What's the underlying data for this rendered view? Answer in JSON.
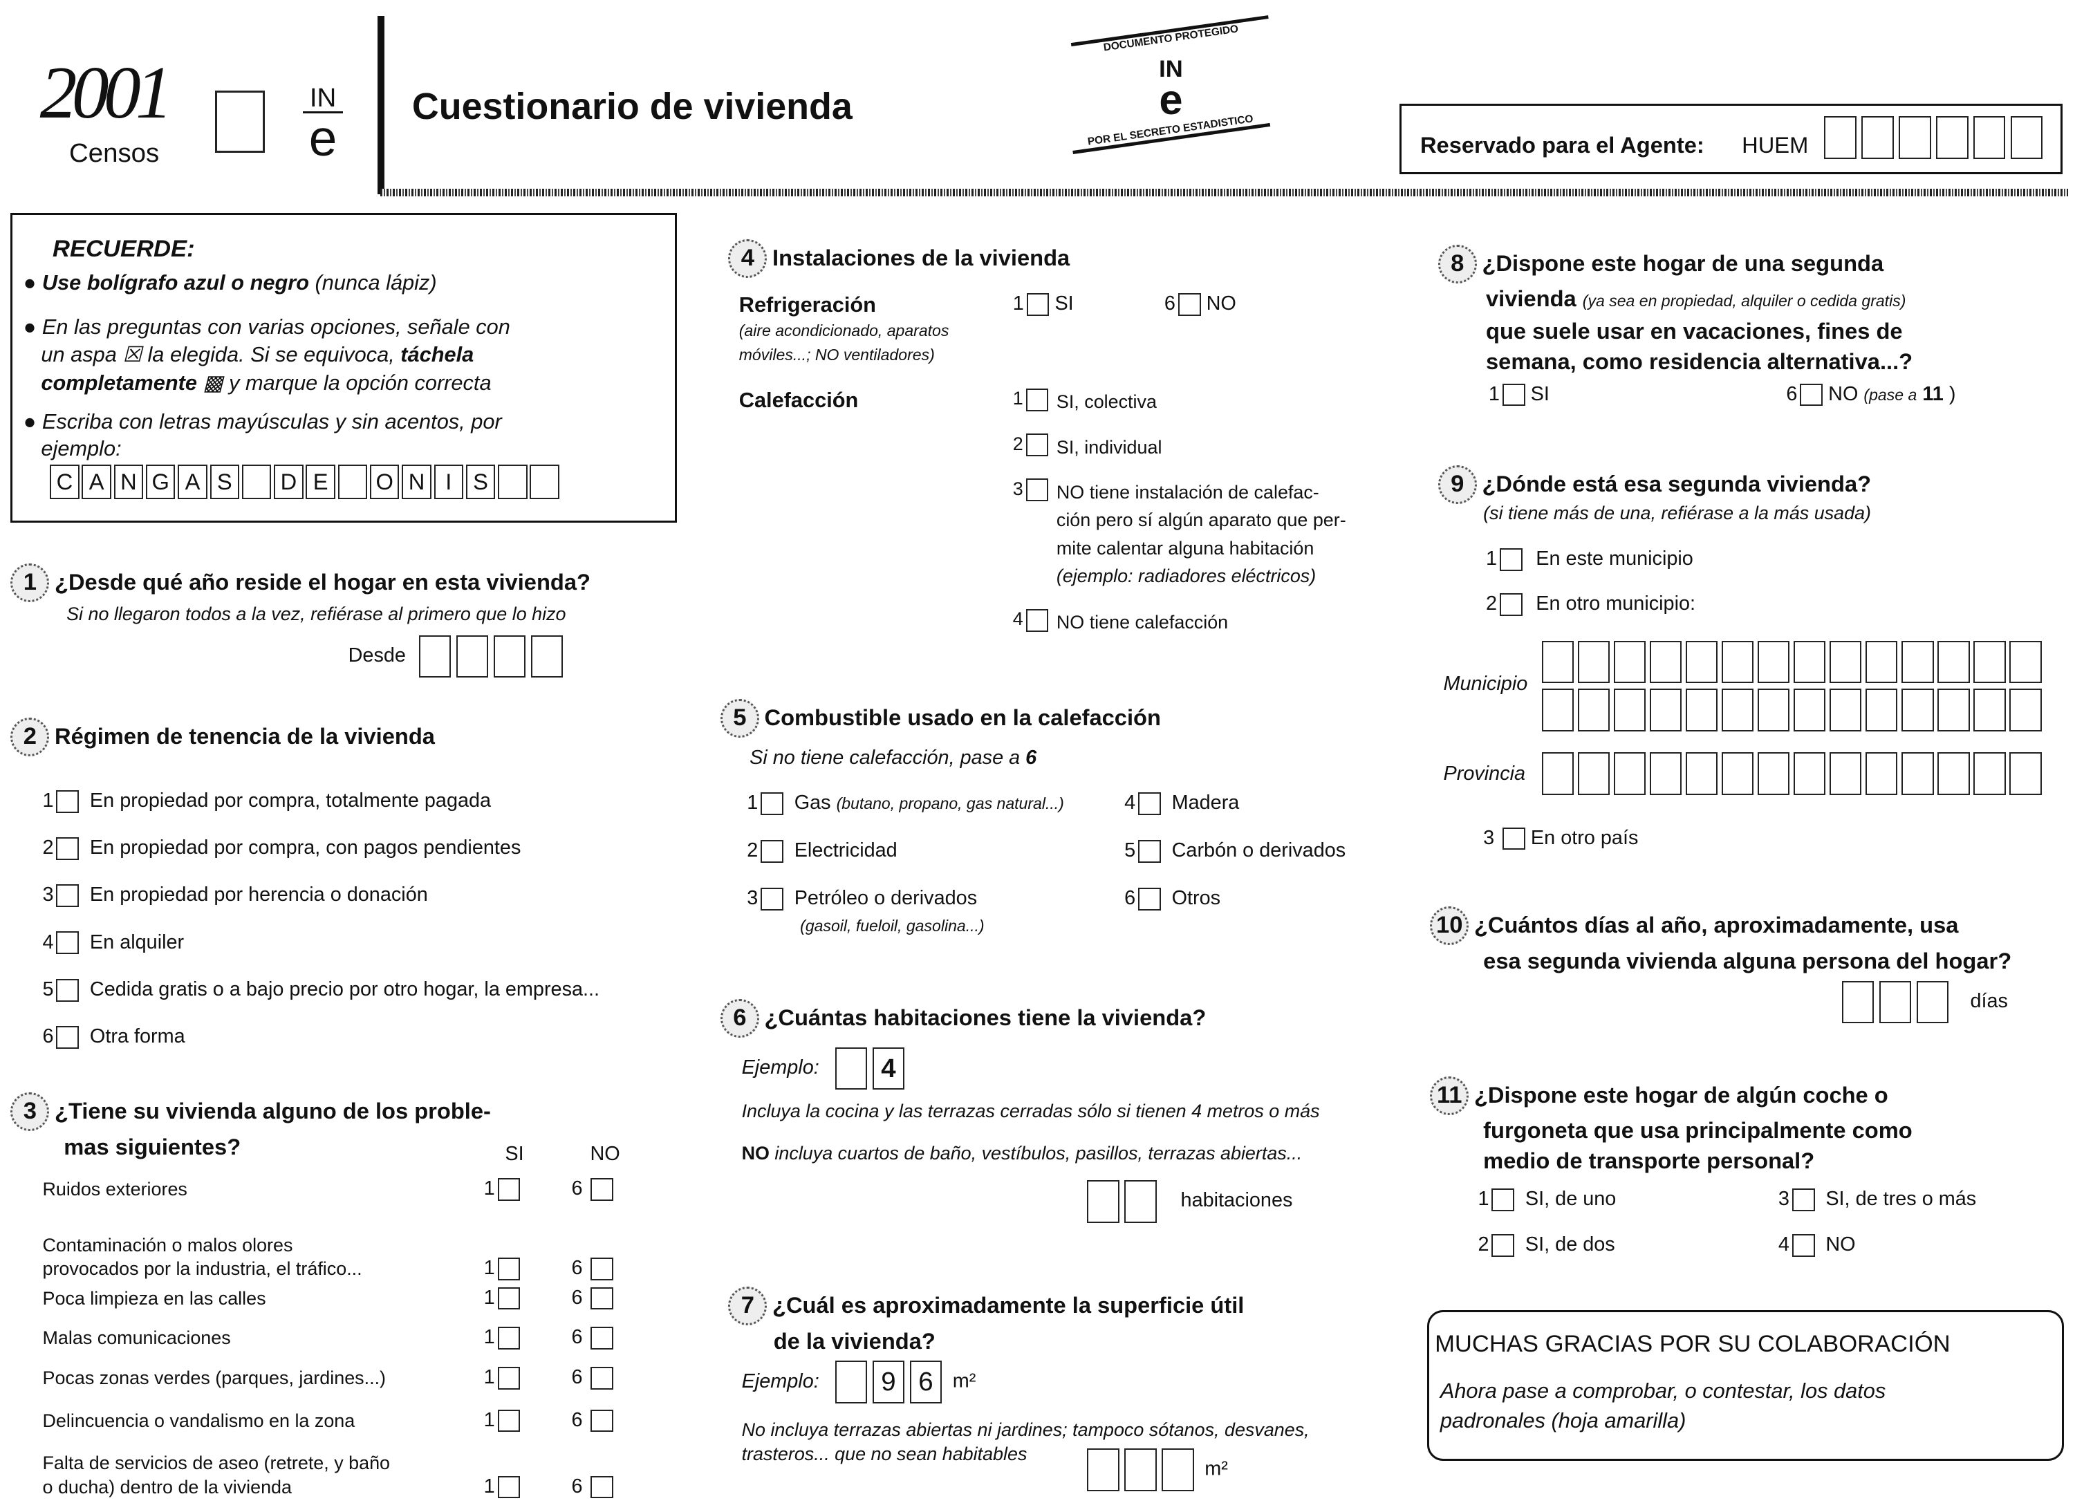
{
  "header": {
    "logo_year": "2001",
    "logo_word": "Censos",
    "ine_top": "IN",
    "ine_bottom": "e",
    "title": "Cuestionario de vivienda",
    "stamp_top": "DOCUMENTO PROTEGIDO",
    "stamp_bottom": "POR EL SECRETO ESTADISTICO",
    "agent_label": "Reservado para el Agente:",
    "agent_code": "HUEM"
  },
  "recuerde": {
    "title": "RECUERDE:",
    "l1a": "Use bolígrafo azul o negro",
    "l1b": " (nunca lápiz)",
    "l2a": "En las preguntas con varias opciones, señale con",
    "l2b": "un aspa ☒ la elegida. Si se equivoca, ",
    "l2c": "táchela",
    "l2d": "completamente",
    "l2e": " ▩ y marque la opción correcta",
    "l3a": "Escriba con letras mayúsculas y sin acentos, por",
    "l3b": "ejemplo:",
    "example": [
      "C",
      "A",
      "N",
      "G",
      "A",
      "S",
      "",
      "D",
      "E",
      "",
      "O",
      "N",
      "I",
      "S",
      "",
      ""
    ]
  },
  "q1": {
    "num": "1",
    "title": "¿Desde qué año reside el hogar en esta vivienda?",
    "note": "Si no llegaron todos a la vez, refiérase al primero que lo hizo",
    "desde": "Desde"
  },
  "q2": {
    "num": "2",
    "title": "Régimen de tenencia de la vivienda",
    "options": [
      {
        "code": "1",
        "label": "En propiedad por compra, totalmente pagada"
      },
      {
        "code": "2",
        "label": "En propiedad por compra, con pagos pendientes"
      },
      {
        "code": "3",
        "label": "En propiedad por herencia o donación"
      },
      {
        "code": "4",
        "label": "En alquiler"
      },
      {
        "code": "5",
        "label": "Cedida gratis o a bajo precio por otro hogar, la empresa..."
      },
      {
        "code": "6",
        "label": "Otra forma"
      }
    ]
  },
  "q3": {
    "num": "3",
    "title1": "¿Tiene su vivienda alguno de los proble-",
    "title2": "mas siguientes?",
    "si": "SI",
    "no": "NO",
    "si_code": "1",
    "no_code": "6",
    "items": [
      {
        "label": "Ruidos exteriores",
        "label2": ""
      },
      {
        "label": "Contaminación o malos olores",
        "label2": "provocados por la industria, el tráfico..."
      },
      {
        "label": "Poca limpieza en las calles",
        "label2": ""
      },
      {
        "label": "Malas comunicaciones",
        "label2": ""
      },
      {
        "label": "Pocas zonas verdes (parques, jardines...)",
        "label2": ""
      },
      {
        "label": "Delincuencia o vandalismo en la zona",
        "label2": ""
      },
      {
        "label": "Falta de servicios de aseo (retrete, y baño",
        "label2": "o ducha) dentro de la vivienda"
      }
    ]
  },
  "q4": {
    "num": "4",
    "title": "Instalaciones de la vivienda",
    "refri": "Refrigeración",
    "refri_note1": "(aire acondicionado, aparatos",
    "refri_note2": "móviles...; NO ventiladores)",
    "refri_si": "1",
    "refri_si_l": "SI",
    "refri_no": "6",
    "refri_no_l": "NO",
    "calef": "Calefacción",
    "calef_opts": [
      {
        "code": "1",
        "label": "SI, colectiva"
      },
      {
        "code": "2",
        "label": "SI, individual"
      },
      {
        "code": "3",
        "label": "NO tiene instalación de calefac-",
        "l2": "ción pero sí algún aparato que per-",
        "l3": "mite calentar alguna habitación",
        "l4": "(ejemplo: radiadores eléctricos)"
      },
      {
        "code": "4",
        "label": "NO tiene calefacción"
      }
    ]
  },
  "q5": {
    "num": "5",
    "title": "Combustible usado en la calefacción",
    "note": "Si no tiene calefacción, pase a",
    "note_ref": "6",
    "options": [
      {
        "code": "1",
        "label": "Gas",
        "note": "(butano, propano, gas natural...)"
      },
      {
        "code": "4",
        "label": "Madera",
        "note": ""
      },
      {
        "code": "2",
        "label": "Electricidad",
        "note": ""
      },
      {
        "code": "5",
        "label": "Carbón o derivados",
        "note": ""
      },
      {
        "code": "3",
        "label": "Petróleo o derivados",
        "note": "(gasoil, fueloil, gasolina...)"
      },
      {
        "code": "6",
        "label": "Otros",
        "note": ""
      }
    ]
  },
  "q6": {
    "num": "6",
    "title": "¿Cuántas habitaciones tiene la vivienda?",
    "ejemplo": "Ejemplo:",
    "ej_digit": "4",
    "note1": "Incluya la cocina y las terrazas cerradas sólo si tienen 4 metros o más",
    "note2a": "NO",
    "note2b": "incluya cuartos de baño, vestíbulos, pasillos, terrazas abiertas...",
    "unit": "habitaciones"
  },
  "q7": {
    "num": "7",
    "title1": "¿Cuál es aproximadamente la superficie útil",
    "title2": "de la vivienda?",
    "ejemplo": "Ejemplo:",
    "ej_d1": "9",
    "ej_d2": "6",
    "unit": "m²",
    "note1": "No incluya terrazas abiertas ni jardines; tampoco sótanos, desvanes,",
    "note2": "trasteros... que no sean habitables"
  },
  "q8": {
    "num": "8",
    "t1": "¿Dispone este hogar de una segunda",
    "t2a": "vivienda",
    "t2b": "(ya sea en propiedad, alquiler o cedida gratis)",
    "t3": "que suele usar en vacaciones, fines de",
    "t4": "semana, como residencia alternativa...?",
    "si_code": "1",
    "si": "SI",
    "no_code": "6",
    "no": "NO",
    "no_note": "(pase a",
    "no_ref": "11",
    "no_close": ")"
  },
  "q9": {
    "num": "9",
    "title": "¿Dónde está esa segunda vivienda?",
    "note": "(si tiene más de una, refiérase a la más usada)",
    "o1c": "1",
    "o1": "En este municipio",
    "o2c": "2",
    "o2": "En otro municipio:",
    "municipio": "Municipio",
    "provincia": "Provincia",
    "o3c": "3",
    "o3": "En otro país"
  },
  "q10": {
    "num": "10",
    "t1": "¿Cuántos días al año, aproximadamente, usa",
    "t2": "esa segunda vivienda alguna persona del hogar?",
    "unit": "días"
  },
  "q11": {
    "num": "11",
    "t1": "¿Dispone este hogar de algún coche o",
    "t2": "furgoneta que usa principalmente como",
    "t3": "medio de transporte personal?",
    "options": [
      {
        "code": "1",
        "label": "SI, de uno"
      },
      {
        "code": "3",
        "label": "SI, de tres o más"
      },
      {
        "code": "2",
        "label": "SI, de dos"
      },
      {
        "code": "4",
        "label": "NO"
      }
    ]
  },
  "thanks": {
    "title": "MUCHAS GRACIAS POR SU COLABORACIÓN",
    "l1": "Ahora pase a comprobar, o contestar, los datos",
    "l2": "padronales (hoja amarilla)"
  }
}
